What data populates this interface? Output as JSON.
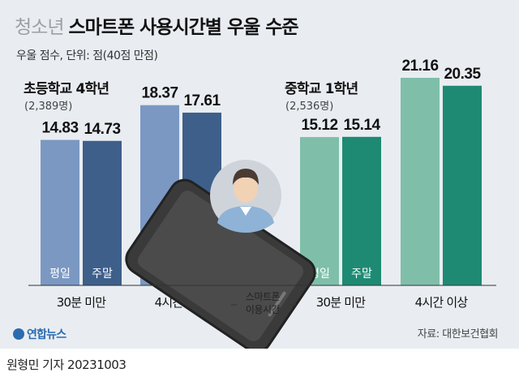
{
  "header": {
    "title_light": "청소년",
    "title_bold": "스마트폰 사용시간별 우울 수준",
    "subtitle": "우울 점수, 단위: 점(40점 만점)"
  },
  "chart_data": [
    {
      "type": "bar",
      "title": "초등학교 4학년",
      "n_label": "(2,389명)",
      "categories": [
        "30분 미만",
        "4시간 이상"
      ],
      "series": [
        {
          "name": "평일",
          "values": [
            14.83,
            18.37
          ],
          "color": "#7b98c2"
        },
        {
          "name": "주말",
          "values": [
            14.73,
            17.61
          ],
          "color": "#3e5f8a"
        }
      ],
      "value_labels": [
        [
          "14.83",
          "18.37"
        ],
        [
          "14.73",
          "17.61"
        ]
      ]
    },
    {
      "type": "bar",
      "title": "중학교 1학년",
      "n_label": "(2,536명)",
      "categories": [
        "30분 미만",
        "4시간 이상"
      ],
      "series": [
        {
          "name": "평일",
          "values": [
            15.12,
            21.16
          ],
          "color": "#7fbfaa"
        },
        {
          "name": "주말",
          "values": [
            15.14,
            20.35
          ],
          "color": "#1e8a73"
        }
      ],
      "value_labels": [
        [
          "15.12",
          "21.16"
        ],
        [
          "15.14",
          "20.35"
        ]
      ]
    }
  ],
  "axis_note": {
    "line1": "스마트폰",
    "line2": "이용시간"
  },
  "footer": {
    "logo": "연합뉴스",
    "source": "자료: 대한보건협회",
    "byline": "원형민 기자  20231003"
  },
  "colors": {
    "background": "#e9edf2",
    "axis": "#333333"
  }
}
